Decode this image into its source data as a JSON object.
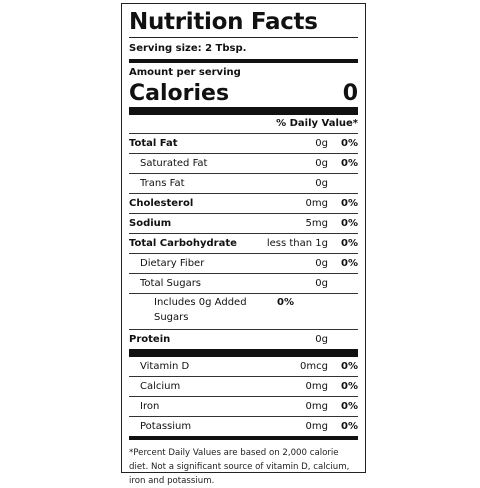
{
  "label": {
    "title": "Nutrition Facts",
    "serving_size": "Serving size: 2 Tbsp.",
    "amount_per_serving": "Amount per serving",
    "calories_label": "Calories",
    "calories_value": "0",
    "daily_value_header": "% Daily Value*",
    "nutrients": [
      {
        "name": "Total Fat",
        "amount": "0g",
        "dv": "0%"
      },
      {
        "name": "Saturated Fat",
        "amount": "0g",
        "dv": "0%"
      },
      {
        "name": "Trans Fat",
        "amount": "0g",
        "dv": ""
      },
      {
        "name": "Cholesterol",
        "amount": "0mg",
        "dv": "0%"
      },
      {
        "name": "Sodium",
        "amount": "5mg",
        "dv": "0%"
      },
      {
        "name": "Total Carbohydrate",
        "amount": "less than 1g",
        "dv": "0%"
      },
      {
        "name": "Dietary Fiber",
        "amount": "0g",
        "dv": "0%"
      },
      {
        "name": "Total Sugars",
        "amount": "0g",
        "dv": ""
      },
      {
        "name": "Includes 0g Added Sugars",
        "amount": "",
        "dv": "0%"
      },
      {
        "name": "Protein",
        "amount": "0g",
        "dv": ""
      }
    ],
    "vitamins": [
      {
        "name": "Vitamin D",
        "amount": "0mcg",
        "dv": "0%"
      },
      {
        "name": "Calcium",
        "amount": "0mg",
        "dv": "0%"
      },
      {
        "name": "Iron",
        "amount": "0mg",
        "dv": "0%"
      },
      {
        "name": "Potassium",
        "amount": "0mg",
        "dv": "0%"
      }
    ],
    "footnote": "*Percent Daily Values are based on 2,000 calorie diet. Not a significant source of vitamin D, calcium, iron and potassium."
  }
}
